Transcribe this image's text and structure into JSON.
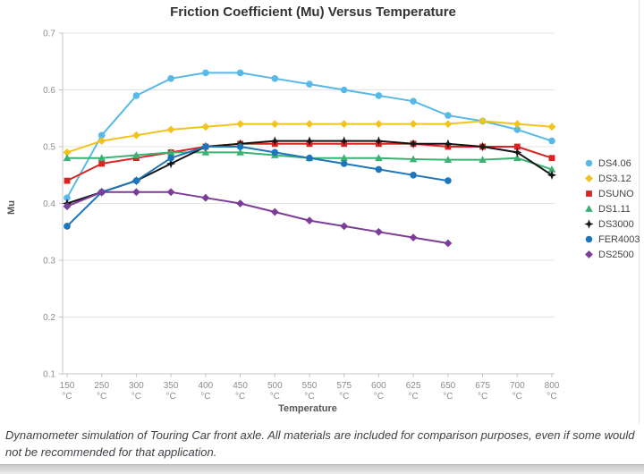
{
  "chart": {
    "title": "Friction Coefficient (Mu) Versus Temperature",
    "x_axis_title": "Temperature",
    "y_axis_title": "Mu"
  },
  "caption": "Dynamometer simulation of Touring Car front axle. All materials are included for comparison purposes, even if some would not be recommended for that application.",
  "chart_data": {
    "type": "line",
    "title": "Friction Coefficient (Mu) Versus Temperature",
    "xlabel": "Temperature",
    "ylabel": "Mu",
    "ylim": [
      0.1,
      0.7
    ],
    "y_ticks": [
      0.1,
      0.2,
      0.3,
      0.4,
      0.5,
      0.6,
      0.7
    ],
    "grid": "horizontal",
    "legend_position": "right",
    "x_tick_unit": "°C",
    "categories": [
      "150",
      "250",
      "300",
      "350",
      "400",
      "450",
      "500",
      "550",
      "575",
      "600",
      "625",
      "650",
      "675",
      "700",
      "800"
    ],
    "series": [
      {
        "name": "DS4.06",
        "color": "#58b9e8",
        "marker": "circle",
        "values": [
          0.41,
          0.52,
          0.59,
          0.62,
          0.63,
          0.63,
          0.62,
          0.61,
          0.6,
          0.59,
          0.58,
          0.555,
          0.545,
          0.53,
          0.51
        ]
      },
      {
        "name": "DS3.12",
        "color": "#f2c31b",
        "marker": "diamond",
        "values": [
          0.49,
          0.51,
          0.52,
          0.53,
          0.535,
          0.54,
          0.54,
          0.54,
          0.54,
          0.54,
          0.54,
          0.54,
          0.545,
          0.54,
          0.535
        ]
      },
      {
        "name": "DSUNO",
        "color": "#dd2222",
        "marker": "square",
        "values": [
          0.44,
          0.47,
          0.48,
          0.49,
          0.5,
          0.505,
          0.505,
          0.505,
          0.505,
          0.505,
          0.505,
          0.5,
          0.5,
          0.5,
          0.48
        ]
      },
      {
        "name": "DS1.11",
        "color": "#3bb273",
        "marker": "triangle",
        "values": [
          0.48,
          0.48,
          0.485,
          0.49,
          0.49,
          0.49,
          0.485,
          0.48,
          0.48,
          0.48,
          0.478,
          0.477,
          0.477,
          0.48,
          0.46
        ]
      },
      {
        "name": "DS3000",
        "color": "#141414",
        "marker": "star",
        "values": [
          0.4,
          0.42,
          0.44,
          0.47,
          0.5,
          0.505,
          0.51,
          0.51,
          0.51,
          0.51,
          0.505,
          0.505,
          0.5,
          0.49,
          0.45
        ]
      },
      {
        "name": "FER4003",
        "color": "#1d76bb",
        "marker": "circle",
        "values": [
          0.36,
          0.42,
          0.44,
          0.48,
          0.5,
          0.5,
          0.49,
          0.48,
          0.47,
          0.46,
          0.45,
          0.44
        ]
      },
      {
        "name": "DS2500",
        "color": "#7d3c98",
        "marker": "diamond",
        "values": [
          0.395,
          0.42,
          0.42,
          0.42,
          0.41,
          0.4,
          0.385,
          0.37,
          0.36,
          0.35,
          0.34,
          0.33
        ]
      }
    ]
  }
}
